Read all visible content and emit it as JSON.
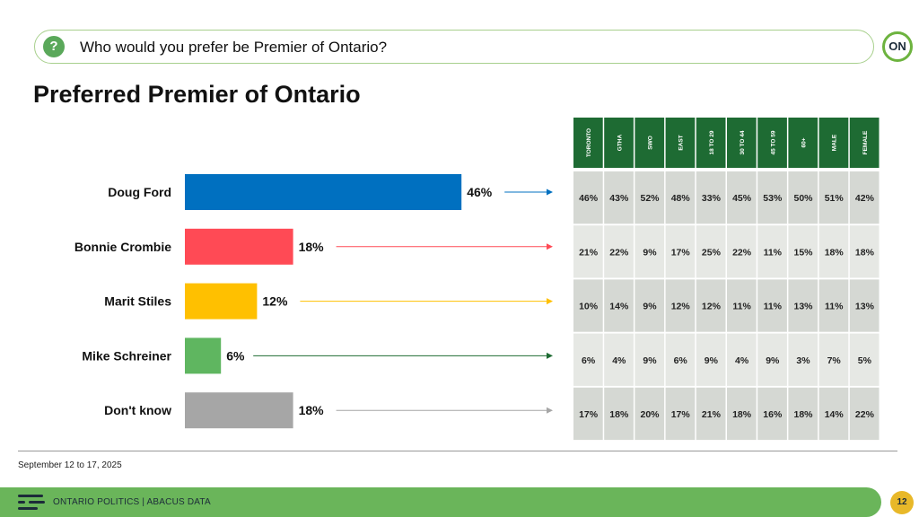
{
  "question": {
    "icon": "question-icon",
    "text": "Who would you prefer be Premier of Ontario?"
  },
  "logo": {
    "text": "ON"
  },
  "title": "Preferred Premier of Ontario",
  "chart_data": {
    "type": "bar",
    "title": "Preferred Premier of Ontario",
    "categories": [
      "Doug Ford",
      "Bonnie Crombie",
      "Marit Stiles",
      "Mike Schreiner",
      "Don't know"
    ],
    "values": [
      46,
      18,
      12,
      6,
      18
    ],
    "value_labels": [
      "46%",
      "18%",
      "12%",
      "6%",
      "18%"
    ],
    "colors": [
      "#0070c0",
      "#ff4a55",
      "#ffc000",
      "#5fb660",
      "#a6a6a6"
    ],
    "xlim": [
      0,
      100
    ],
    "table": {
      "columns": [
        "TORONTO",
        "GTHA",
        "SWO",
        "EAST",
        "18 TO 29",
        "30 TO 44",
        "45 TO 59",
        "60+",
        "MALE",
        "FEMALE"
      ],
      "header_color": "#1e6b33",
      "rows": [
        [
          "46%",
          "43%",
          "52%",
          "48%",
          "33%",
          "45%",
          "53%",
          "50%",
          "51%",
          "42%"
        ],
        [
          "21%",
          "22%",
          "9%",
          "17%",
          "25%",
          "22%",
          "11%",
          "15%",
          "18%",
          "18%"
        ],
        [
          "10%",
          "14%",
          "9%",
          "12%",
          "12%",
          "11%",
          "11%",
          "13%",
          "11%",
          "13%"
        ],
        [
          "6%",
          "4%",
          "9%",
          "6%",
          "9%",
          "4%",
          "9%",
          "3%",
          "7%",
          "5%"
        ],
        [
          "17%",
          "18%",
          "20%",
          "17%",
          "21%",
          "18%",
          "16%",
          "18%",
          "14%",
          "22%"
        ]
      ]
    }
  },
  "date_note": "September 12 to 17, 2025",
  "footer": {
    "text": "ONTARIO POLITICS  |  ABACUS DATA",
    "page_number": "12"
  }
}
